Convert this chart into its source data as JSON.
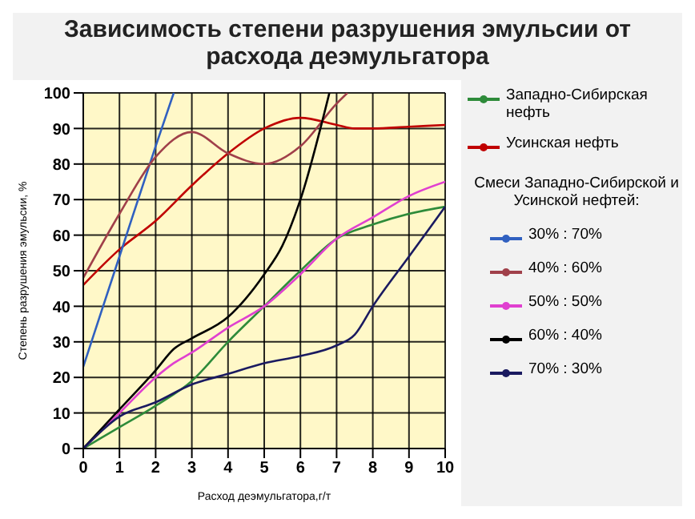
{
  "chart_data": {
    "type": "line",
    "title": "Зависимость степени разрушения эмульсии от расхода деэмульгатора",
    "xlabel": "Расход деэмульгатора,г/т",
    "ylabel": "Степень разрушения эмульсии, %",
    "legend_title": "Смеси Западно-Сибирской и Усинской  нефтей:",
    "xlim": [
      0,
      10
    ],
    "xticks": [
      0,
      1,
      2,
      3,
      4,
      5,
      6,
      7,
      8,
      9,
      10
    ],
    "ylim": [
      0,
      100
    ],
    "yticks": [
      0,
      10,
      20,
      30,
      40,
      50,
      60,
      70,
      80,
      90,
      100
    ],
    "grid": true,
    "legend": "right",
    "series": [
      {
        "name": "Западно-Сибирская нефть",
        "color": "#2e8b3a",
        "x": [
          0,
          1,
          2,
          3,
          4,
          5,
          6,
          7,
          8,
          9,
          10
        ],
        "values": [
          0,
          6,
          12,
          19,
          30,
          40,
          50,
          59,
          63,
          66,
          68
        ]
      },
      {
        "name": "Усинская нефть",
        "color": "#c00000",
        "x": [
          0,
          1,
          2,
          3,
          4,
          5,
          6,
          7,
          7.5,
          8,
          9,
          10
        ],
        "values": [
          46,
          56,
          64,
          74,
          83,
          90,
          93,
          91,
          90,
          90,
          90.5,
          91
        ]
      },
      {
        "name": "30% : 70%",
        "color": "#3060c0",
        "x": [
          0,
          1,
          2,
          2.5
        ],
        "values": [
          23,
          54,
          85,
          100
        ]
      },
      {
        "name": "40% : 60%",
        "color": "#a0404a",
        "x": [
          0,
          1,
          2,
          3,
          4,
          5,
          6,
          7,
          7.3
        ],
        "values": [
          48,
          66,
          82,
          89,
          83,
          80,
          85,
          97,
          100
        ]
      },
      {
        "name": "50% : 50%",
        "color": "#e040d0",
        "x": [
          0,
          1,
          2,
          2.5,
          3,
          4,
          5,
          6,
          7,
          8,
          9,
          10
        ],
        "values": [
          0,
          10,
          20,
          24,
          27,
          34,
          40,
          49,
          59,
          65,
          71,
          75
        ]
      },
      {
        "name": "60% : 40%",
        "color": "#000000",
        "x": [
          0,
          1,
          2,
          2.5,
          3,
          4,
          5,
          5.5,
          6,
          6.8
        ],
        "values": [
          0,
          11,
          22,
          28,
          31,
          37,
          49,
          57,
          70,
          100
        ]
      },
      {
        "name": "70% : 30%",
        "color": "#1a1a60",
        "x": [
          0,
          1,
          2,
          3,
          4,
          5,
          6,
          7,
          7.5,
          8,
          9,
          10
        ],
        "values": [
          0,
          9,
          13,
          18,
          21,
          24,
          26,
          29,
          32,
          40,
          54,
          68
        ]
      }
    ]
  }
}
